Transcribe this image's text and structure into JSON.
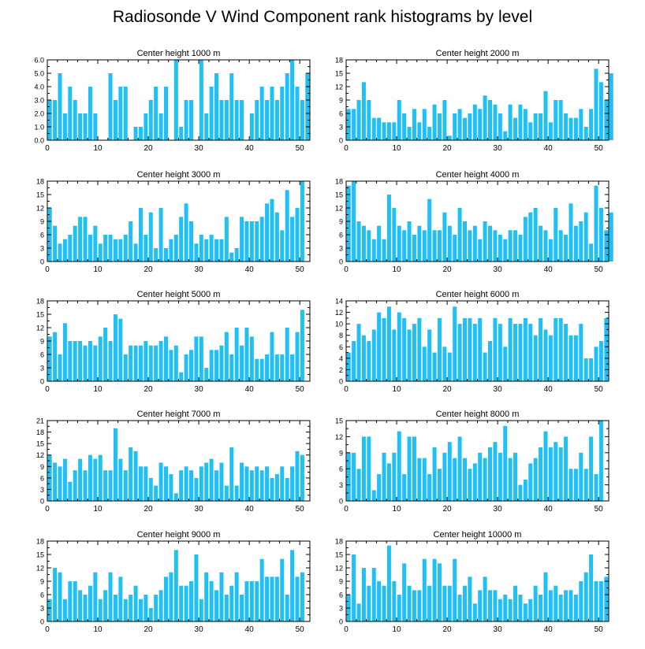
{
  "title": "Radiosonde V Wind Component rank histograms by level",
  "colors": {
    "bar": "#1ec0f5",
    "axis": "#000000"
  },
  "chart_data": [
    {
      "type": "bar",
      "title": "Center height 1000 m",
      "xlim": [
        0,
        52
      ],
      "ylim": [
        0,
        6
      ],
      "xticks": [
        0,
        10,
        20,
        30,
        40,
        50
      ],
      "yticks": [
        "0.0",
        "1.0",
        "2.0",
        "3.0",
        "4.0",
        "5.0",
        "6.0"
      ],
      "values": [
        3,
        3,
        5,
        2,
        4,
        3,
        2,
        2,
        4,
        2,
        0,
        0,
        5,
        3,
        4,
        4,
        0,
        1,
        1,
        2,
        3,
        4,
        2,
        4,
        0,
        6,
        1,
        3,
        3,
        0,
        6,
        2,
        4,
        5,
        3,
        3,
        5,
        3,
        3,
        0,
        2,
        3,
        4,
        3,
        4,
        3,
        4,
        5,
        6,
        4,
        3,
        5
      ]
    },
    {
      "type": "bar",
      "title": "Center height 2000 m",
      "xlim": [
        0,
        52
      ],
      "ylim": [
        0,
        18
      ],
      "xticks": [
        0,
        10,
        20,
        30,
        40,
        50
      ],
      "yticks": [
        "0",
        "3",
        "6",
        "9",
        "12",
        "15",
        "18"
      ],
      "values": [
        7,
        7,
        9,
        13,
        9,
        5,
        5,
        4,
        4,
        4,
        9,
        6,
        3,
        7,
        4,
        7,
        3,
        8,
        6,
        9,
        1,
        6,
        7,
        5,
        6,
        8,
        7,
        10,
        9,
        8,
        6,
        2,
        8,
        5,
        8,
        7,
        4,
        6,
        6,
        11,
        4,
        9,
        9,
        6,
        5,
        5,
        7,
        3,
        7,
        16,
        13,
        9,
        15
      ]
    },
    {
      "type": "bar",
      "title": "Center height 3000 m",
      "xlim": [
        0,
        52
      ],
      "ylim": [
        0,
        18
      ],
      "xticks": [
        0,
        10,
        20,
        30,
        40,
        50
      ],
      "yticks": [
        "0",
        "3",
        "6",
        "9",
        "12",
        "15",
        "18"
      ],
      "values": [
        12,
        8,
        4,
        5,
        6,
        8,
        10,
        10,
        6,
        8,
        4,
        6,
        6,
        5,
        5,
        6,
        9,
        4,
        12,
        6,
        11,
        3,
        12,
        3,
        5,
        6,
        10,
        13,
        9,
        4,
        6,
        5,
        6,
        5,
        5,
        10,
        2,
        3,
        10,
        9,
        9,
        9,
        10,
        13,
        14,
        11,
        7,
        16,
        10,
        12,
        18
      ]
    },
    {
      "type": "bar",
      "title": "Center height 4000 m",
      "xlim": [
        0,
        52
      ],
      "ylim": [
        0,
        18
      ],
      "xticks": [
        0,
        10,
        20,
        30,
        40,
        50
      ],
      "yticks": [
        "0",
        "3",
        "6",
        "9",
        "12",
        "15",
        "18"
      ],
      "values": [
        17,
        18,
        9,
        8,
        7,
        5,
        8,
        5,
        15,
        12,
        8,
        7,
        9,
        6,
        8,
        7,
        14,
        7,
        7,
        11,
        8,
        6,
        12,
        9,
        7,
        8,
        5,
        9,
        8,
        7,
        6,
        5,
        7,
        7,
        6,
        10,
        11,
        12,
        8,
        7,
        5,
        12,
        7,
        6,
        13,
        8,
        9,
        11,
        4,
        17,
        12,
        7,
        11
      ]
    },
    {
      "type": "bar",
      "title": "Center height 5000 m",
      "xlim": [
        0,
        52
      ],
      "ylim": [
        0,
        18
      ],
      "xticks": [
        0,
        10,
        20,
        30,
        40,
        50
      ],
      "yticks": [
        "0",
        "3",
        "6",
        "9",
        "12",
        "15",
        "18"
      ],
      "values": [
        10,
        11,
        6,
        13,
        9,
        9,
        9,
        8,
        9,
        8,
        10,
        12,
        9,
        15,
        14,
        6,
        8,
        8,
        8,
        9,
        8,
        8,
        9,
        10,
        7,
        8,
        2,
        6,
        7,
        10,
        10,
        3,
        7,
        7,
        8,
        11,
        6,
        12,
        8,
        12,
        10,
        5,
        5,
        6,
        11,
        6,
        6,
        12,
        6,
        11,
        16
      ]
    },
    {
      "type": "bar",
      "title": "Center height 6000 m",
      "xlim": [
        0,
        52
      ],
      "ylim": [
        0,
        14
      ],
      "xticks": [
        0,
        10,
        20,
        30,
        40,
        50
      ],
      "yticks": [
        "0",
        "2",
        "4",
        "6",
        "8",
        "10",
        "12",
        "14"
      ],
      "values": [
        5,
        7,
        10,
        8,
        7,
        9,
        12,
        11,
        13,
        9,
        12,
        11,
        9,
        10,
        11,
        6,
        9,
        5,
        11,
        6,
        5,
        13,
        10,
        11,
        11,
        10,
        11,
        5,
        7,
        11,
        10,
        6,
        11,
        10,
        10,
        11,
        10,
        8,
        11,
        9,
        8,
        11,
        11,
        10,
        8,
        8,
        10,
        4,
        4,
        6,
        7,
        11
      ]
    },
    {
      "type": "bar",
      "title": "Center height 7000 m",
      "xlim": [
        0,
        52
      ],
      "ylim": [
        0,
        21
      ],
      "xticks": [
        0,
        10,
        20,
        30,
        40,
        50
      ],
      "yticks": [
        "0",
        "3",
        "6",
        "9",
        "12",
        "15",
        "18",
        "21"
      ],
      "values": [
        12,
        10,
        9,
        11,
        5,
        8,
        11,
        8,
        12,
        11,
        12,
        8,
        8,
        19,
        11,
        8,
        14,
        13,
        9,
        9,
        6,
        4,
        10,
        9,
        7,
        2,
        8,
        9,
        8,
        6,
        9,
        10,
        11,
        8,
        10,
        4,
        14,
        4,
        10,
        9,
        8,
        9,
        8,
        9,
        6,
        7,
        9,
        6,
        9,
        13,
        12
      ]
    },
    {
      "type": "bar",
      "title": "Center height 8000 m",
      "xlim": [
        0,
        52
      ],
      "ylim": [
        0,
        15
      ],
      "xticks": [
        0,
        10,
        20,
        30,
        40,
        50
      ],
      "yticks": [
        "0",
        "3",
        "6",
        "9",
        "12",
        "15"
      ],
      "values": [
        9,
        9,
        6,
        12,
        12,
        2,
        5,
        9,
        7,
        9,
        13,
        5,
        12,
        12,
        8,
        8,
        5,
        10,
        6,
        9,
        11,
        8,
        12,
        8,
        6,
        7,
        9,
        8,
        10,
        11,
        9,
        14,
        8,
        9,
        3,
        4,
        7,
        8,
        10,
        13,
        10,
        11,
        10,
        12,
        6,
        6,
        9,
        6,
        12,
        5,
        15
      ]
    },
    {
      "type": "bar",
      "title": "Center height 9000 m",
      "xlim": [
        0,
        52
      ],
      "ylim": [
        0,
        18
      ],
      "xticks": [
        0,
        10,
        20,
        30,
        40,
        50
      ],
      "yticks": [
        "0",
        "3",
        "6",
        "9",
        "12",
        "15",
        "18"
      ],
      "values": [
        5,
        12,
        11,
        5,
        9,
        9,
        7,
        6,
        8,
        11,
        5,
        7,
        11,
        6,
        10,
        5,
        6,
        8,
        5,
        6,
        3,
        6,
        7,
        10,
        11,
        16,
        8,
        8,
        9,
        15,
        5,
        11,
        9,
        7,
        11,
        6,
        8,
        11,
        6,
        9,
        9,
        9,
        14,
        10,
        10,
        10,
        14,
        6,
        16,
        10,
        11
      ]
    },
    {
      "type": "bar",
      "title": "Center height 10000 m",
      "xlim": [
        0,
        52
      ],
      "ylim": [
        0,
        18
      ],
      "xticks": [
        0,
        10,
        20,
        30,
        40,
        50
      ],
      "yticks": [
        "0",
        "3",
        "6",
        "9",
        "12",
        "15",
        "18"
      ],
      "values": [
        6,
        15,
        4,
        12,
        8,
        12,
        9,
        8,
        17,
        9,
        6,
        13,
        8,
        7,
        7,
        14,
        8,
        14,
        13,
        8,
        8,
        14,
        6,
        8,
        10,
        4,
        7,
        10,
        7,
        7,
        5,
        6,
        5,
        8,
        6,
        4,
        5,
        8,
        6,
        11,
        7,
        8,
        6,
        7,
        7,
        6,
        9,
        11,
        15,
        9,
        9,
        10
      ]
    }
  ]
}
